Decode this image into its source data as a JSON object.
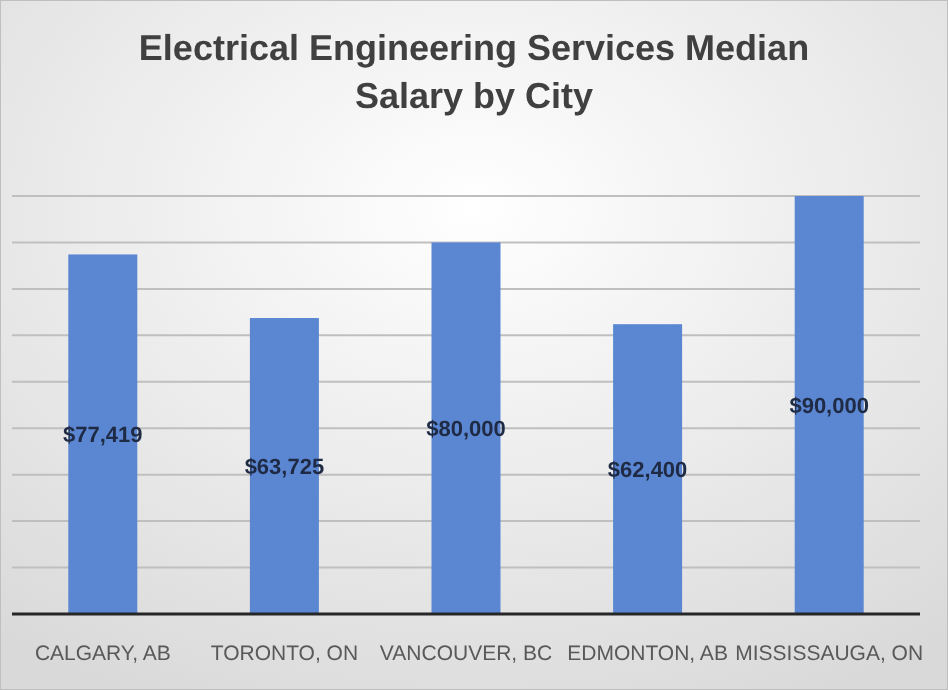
{
  "chart_data": {
    "type": "bar",
    "title": "Electrical Engineering Services Median Salary by City",
    "categories": [
      "CALGARY, AB",
      "TORONTO, ON",
      "VANCOUVER, BC",
      "EDMONTON, AB",
      "MISSISSAUGA, ON"
    ],
    "values": [
      77419,
      63725,
      80000,
      62400,
      90000
    ],
    "color": "#5b87d2",
    "value_labels": [
      "$77,419",
      "$63,725",
      "$80,000",
      "$62,400",
      "$90,000"
    ],
    "ylim": [
      0,
      90000
    ],
    "yticks": [
      {
        "value": 0,
        "label": null
      },
      {
        "value": 10000,
        "label": null
      },
      {
        "value": 20000,
        "label": null
      },
      {
        "value": 30000,
        "label": null
      },
      {
        "value": 40000,
        "label": null
      },
      {
        "value": 50000,
        "label": null
      },
      {
        "value": 60000,
        "label": null
      },
      {
        "value": 70000,
        "label": null
      },
      {
        "value": 80000,
        "label": null
      },
      {
        "value": 90000,
        "label": null
      }
    ],
    "grid": "y",
    "tick_labels": "x"
  }
}
